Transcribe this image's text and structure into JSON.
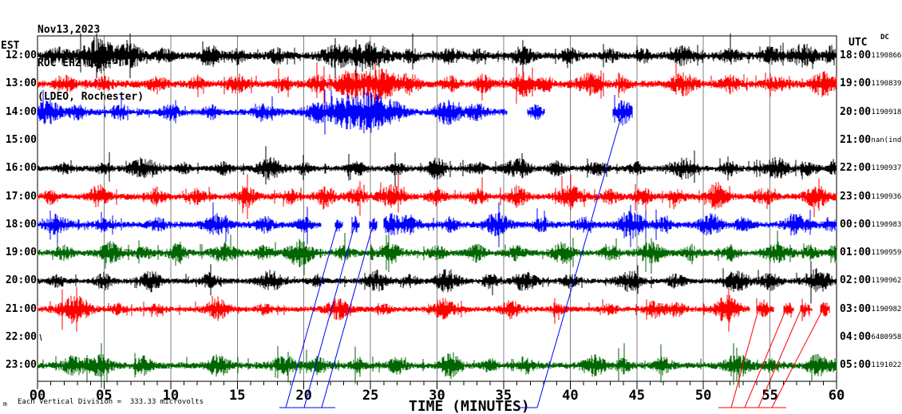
{
  "header": {
    "date": "Nov13,2023",
    "station": "ROC EHZ LD --",
    "location": "(LDEO, Rochester)"
  },
  "left_axis": {
    "label": "EST"
  },
  "right_axis": {
    "label": "UTC",
    "dc_label": "DC"
  },
  "footer": {
    "marker": "m",
    "scale_text": "Each Vertical Division =  333.33 microvolts"
  },
  "colors": {
    "black": "#000000",
    "red": "#ff0000",
    "blue": "#0000ff",
    "green": "#006600",
    "grid": "#808080"
  },
  "chart_data": {
    "type": "line",
    "subtype": "helicorder-seismogram",
    "x_axis": {
      "title": "TIME (MINUTES)",
      "range_minutes": [
        0,
        60
      ],
      "tick_labels": [
        "00",
        "05",
        "10",
        "15",
        "20",
        "25",
        "30",
        "35",
        "40",
        "45",
        "50",
        "55",
        "60"
      ],
      "minor_tick_minutes": 1,
      "major_tick_minutes": 5,
      "grid": "vertical-gray-every-5-min"
    },
    "rows": [
      {
        "est": "12:00",
        "utc": "18:00",
        "dc": "-1190866",
        "color": "black",
        "base_amp": 4.5,
        "segments": [
          [
            0,
            60
          ]
        ],
        "bursts": [
          [
            1.5,
            8,
            0.8
          ],
          [
            4.6,
            20,
            1.3
          ],
          [
            7,
            12,
            0.9
          ],
          [
            9.5,
            7,
            0.6
          ],
          [
            13,
            10,
            0.7
          ],
          [
            15,
            8,
            0.5
          ],
          [
            18,
            7,
            0.6
          ],
          [
            22.5,
            12,
            1.1
          ],
          [
            25,
            14,
            1.3
          ],
          [
            28,
            7,
            0.6
          ],
          [
            31,
            7,
            0.7
          ],
          [
            33,
            6,
            0.5
          ],
          [
            36.5,
            11,
            0.7
          ],
          [
            40,
            7,
            0.6
          ],
          [
            43,
            6,
            0.5
          ],
          [
            45.5,
            7,
            0.5
          ],
          [
            48.5,
            9,
            0.9
          ],
          [
            52,
            7,
            0.7
          ],
          [
            55,
            8,
            0.7
          ],
          [
            57.5,
            12,
            0.9
          ],
          [
            59.6,
            10,
            0.4
          ]
        ]
      },
      {
        "est": "13:00",
        "utc": "19:00",
        "dc": "-1190839",
        "color": "red",
        "base_amp": 4.5,
        "segments": [
          [
            0,
            60
          ]
        ],
        "bursts": [
          [
            2,
            9,
            0.7
          ],
          [
            5,
            7,
            0.6
          ],
          [
            9,
            9,
            0.6
          ],
          [
            12,
            7,
            0.5
          ],
          [
            15,
            10,
            0.7
          ],
          [
            18.5,
            7,
            0.5
          ],
          [
            21,
            9,
            0.6
          ],
          [
            23.5,
            14,
            1.1
          ],
          [
            25.8,
            16,
            1.3
          ],
          [
            28,
            9,
            0.7
          ],
          [
            31,
            7,
            0.6
          ],
          [
            33.5,
            8,
            0.6
          ],
          [
            36.6,
            13,
            0.7
          ],
          [
            38.2,
            7,
            0.5
          ],
          [
            41.5,
            11,
            0.9
          ],
          [
            44,
            7,
            0.5
          ],
          [
            48.5,
            11,
            0.9
          ],
          [
            52,
            9,
            0.6
          ],
          [
            55.5,
            7,
            0.7
          ],
          [
            59,
            12,
            0.9
          ]
        ]
      },
      {
        "est": "14:00",
        "utc": "20:00",
        "dc": "-1190918",
        "color": "blue",
        "base_amp": 4,
        "segments": [
          [
            0,
            35.3
          ],
          [
            36.8,
            38.1
          ],
          [
            43.2,
            44.7
          ]
        ],
        "bursts": [
          [
            0.8,
            13,
            0.9
          ],
          [
            3,
            7,
            0.6
          ],
          [
            6,
            6,
            0.5
          ],
          [
            10,
            9,
            0.6
          ],
          [
            13,
            7,
            0.5
          ],
          [
            17,
            8,
            0.7
          ],
          [
            21,
            11,
            0.9
          ],
          [
            23.2,
            18,
            1.3
          ],
          [
            25.2,
            20,
            1.1
          ],
          [
            27,
            9,
            0.7
          ],
          [
            30.8,
            13,
            0.9
          ],
          [
            33,
            9,
            0.7
          ],
          [
            37.4,
            8,
            0.4
          ],
          [
            44,
            14,
            0.6
          ]
        ]
      },
      {
        "est": "15:00",
        "utc": "21:00",
        "dc": "-nan(ind",
        "color": "green",
        "base_amp": 0,
        "segments": [],
        "bursts": []
      },
      {
        "est": "16:00",
        "utc": "22:00",
        "dc": "-1190937",
        "color": "black",
        "base_amp": 3.5,
        "segments": [
          [
            0,
            60
          ]
        ],
        "bursts": [
          [
            2,
            5,
            0.5
          ],
          [
            5,
            6,
            0.6
          ],
          [
            8,
            11,
            1.1
          ],
          [
            11,
            5,
            0.5
          ],
          [
            14,
            6,
            0.6
          ],
          [
            17.5,
            11,
            0.9
          ],
          [
            20,
            6,
            0.5
          ],
          [
            24,
            7,
            0.7
          ],
          [
            27,
            6,
            0.6
          ],
          [
            30,
            11,
            0.7
          ],
          [
            33,
            7,
            0.6
          ],
          [
            36,
            11,
            0.9
          ],
          [
            39,
            7,
            0.6
          ],
          [
            42,
            7,
            0.7
          ],
          [
            45,
            6,
            0.5
          ],
          [
            48.5,
            11,
            0.9
          ],
          [
            52,
            7,
            0.6
          ],
          [
            55.5,
            11,
            0.9
          ],
          [
            58,
            7,
            0.6
          ],
          [
            59.8,
            9,
            0.3
          ]
        ]
      },
      {
        "est": "17:00",
        "utc": "23:00",
        "dc": "-1190936",
        "color": "red",
        "base_amp": 4,
        "segments": [
          [
            0,
            60
          ]
        ],
        "bursts": [
          [
            1,
            7,
            0.5
          ],
          [
            4.6,
            12,
            0.7
          ],
          [
            9,
            9,
            0.6
          ],
          [
            12,
            7,
            0.6
          ],
          [
            15.6,
            12,
            0.7
          ],
          [
            19,
            7,
            0.6
          ],
          [
            21.6,
            11,
            0.7
          ],
          [
            24,
            9,
            0.7
          ],
          [
            26.6,
            12,
            0.9
          ],
          [
            30,
            9,
            0.6
          ],
          [
            33,
            7,
            0.6
          ],
          [
            36,
            11,
            0.7
          ],
          [
            40,
            11,
            0.9
          ],
          [
            43,
            7,
            0.6
          ],
          [
            45.5,
            9,
            0.6
          ],
          [
            48,
            7,
            0.6
          ],
          [
            51,
            15,
            0.7
          ],
          [
            54.5,
            9,
            0.7
          ],
          [
            58.5,
            11,
            0.9
          ]
        ]
      },
      {
        "est": "18:00",
        "utc": "00:00",
        "dc": "-1190983",
        "color": "blue",
        "base_amp": 4,
        "segments": [
          [
            0,
            21.3
          ],
          [
            22.3,
            22.9
          ],
          [
            23.6,
            24.2
          ],
          [
            24.9,
            25.5
          ],
          [
            26,
            60
          ]
        ],
        "bursts": [
          [
            1.5,
            11,
            0.8
          ],
          [
            5,
            6,
            0.6
          ],
          [
            9,
            6,
            0.6
          ],
          [
            13.5,
            11,
            0.9
          ],
          [
            17,
            9,
            0.6
          ],
          [
            20,
            7,
            0.5
          ],
          [
            22.6,
            8,
            0.2
          ],
          [
            23.9,
            8,
            0.2
          ],
          [
            25.2,
            8,
            0.2
          ],
          [
            26.6,
            11,
            0.7
          ],
          [
            28,
            9,
            0.7
          ],
          [
            31,
            7,
            0.6
          ],
          [
            34.5,
            13,
            0.9
          ],
          [
            38,
            7,
            0.6
          ],
          [
            41,
            7,
            0.6
          ],
          [
            44.6,
            15,
            0.9
          ],
          [
            47,
            7,
            0.6
          ],
          [
            50.5,
            11,
            0.9
          ],
          [
            53,
            7,
            0.6
          ],
          [
            57,
            11,
            0.9
          ],
          [
            59.5,
            7,
            0.5
          ]
        ]
      },
      {
        "est": "19:00",
        "utc": "01:00",
        "dc": "-1190959",
        "color": "green",
        "base_amp": 4,
        "segments": [
          [
            0,
            60
          ]
        ],
        "bursts": [
          [
            2,
            7,
            0.6
          ],
          [
            5.5,
            11,
            0.8
          ],
          [
            8,
            7,
            0.6
          ],
          [
            10.5,
            9,
            0.6
          ],
          [
            14,
            11,
            0.8
          ],
          [
            17,
            7,
            0.6
          ],
          [
            19.7,
            14,
            0.9
          ],
          [
            23,
            7,
            0.6
          ],
          [
            26.5,
            11,
            0.8
          ],
          [
            30,
            7,
            0.6
          ],
          [
            33,
            9,
            0.6
          ],
          [
            36,
            7,
            0.6
          ],
          [
            39.5,
            11,
            0.8
          ],
          [
            43,
            7,
            0.6
          ],
          [
            46,
            11,
            0.9
          ],
          [
            49,
            7,
            0.6
          ],
          [
            52,
            7,
            0.6
          ],
          [
            55.5,
            11,
            0.9
          ],
          [
            58,
            7,
            0.6
          ],
          [
            59.9,
            10,
            0.3
          ]
        ]
      },
      {
        "est": "20:00",
        "utc": "02:00",
        "dc": "-1190962",
        "color": "black",
        "base_amp": 3.5,
        "segments": [
          [
            0,
            60
          ]
        ],
        "bursts": [
          [
            1.5,
            6,
            0.5
          ],
          [
            5,
            9,
            0.6
          ],
          [
            8.5,
            11,
            0.8
          ],
          [
            13,
            9,
            0.6
          ],
          [
            17.5,
            11,
            0.8
          ],
          [
            21,
            6,
            0.5
          ],
          [
            25.5,
            11,
            0.8
          ],
          [
            28,
            6,
            0.5
          ],
          [
            30.8,
            13,
            0.8
          ],
          [
            34,
            7,
            0.6
          ],
          [
            36.6,
            11,
            0.8
          ],
          [
            40,
            7,
            0.6
          ],
          [
            44.5,
            11,
            0.9
          ],
          [
            48,
            7,
            0.6
          ],
          [
            52.5,
            11,
            0.9
          ],
          [
            55,
            9,
            0.7
          ],
          [
            58.6,
            13,
            0.9
          ]
        ]
      },
      {
        "est": "21:00",
        "utc": "03:00",
        "dc": "-1190982",
        "color": "red",
        "base_amp": 3.5,
        "segments": [
          [
            0,
            53.5
          ],
          [
            54.0,
            55.3
          ],
          [
            56.0,
            56.8
          ],
          [
            57.3,
            58.2
          ],
          [
            58.8,
            59.5
          ]
        ],
        "bursts": [
          [
            2.8,
            16,
            1.1
          ],
          [
            6,
            5,
            0.5
          ],
          [
            9,
            5,
            0.5
          ],
          [
            13.5,
            11,
            0.8
          ],
          [
            17,
            5,
            0.5
          ],
          [
            22.5,
            11,
            0.8
          ],
          [
            26,
            5,
            0.5
          ],
          [
            30.5,
            11,
            0.8
          ],
          [
            35.5,
            9,
            0.7
          ],
          [
            39,
            5,
            0.5
          ],
          [
            43,
            5,
            0.5
          ],
          [
            46.5,
            9,
            0.8
          ],
          [
            48,
            7,
            0.6
          ],
          [
            51.8,
            15,
            0.9
          ],
          [
            54.5,
            9,
            0.4
          ],
          [
            56.3,
            8,
            0.3
          ],
          [
            57.6,
            7,
            0.3
          ],
          [
            59.1,
            7,
            0.3
          ]
        ]
      },
      {
        "est": "22:00",
        "utc": "04:00",
        "dc": "-6480958",
        "color": "blue",
        "base_amp": 0,
        "segments": [],
        "bursts": []
      },
      {
        "est": "23:00",
        "utc": "05:00",
        "dc": "-1191022",
        "color": "green",
        "base_amp": 4,
        "segments": [
          [
            0,
            60
          ]
        ],
        "bursts": [
          [
            2.8,
            9,
            1
          ],
          [
            4.8,
            11,
            0.8
          ],
          [
            8,
            9,
            0.6
          ],
          [
            13.6,
            11,
            0.8
          ],
          [
            18.6,
            9,
            1
          ],
          [
            21,
            9,
            0.7
          ],
          [
            24,
            6,
            0.5
          ],
          [
            27,
            9,
            0.6
          ],
          [
            31,
            14,
            0.7
          ],
          [
            34,
            6,
            0.5
          ],
          [
            36.6,
            9,
            0.6
          ],
          [
            41.8,
            11,
            0.9
          ],
          [
            44,
            7,
            0.5
          ],
          [
            47,
            9,
            0.6
          ],
          [
            52.6,
            13,
            0.9
          ],
          [
            55,
            7,
            0.5
          ],
          [
            58.6,
            11,
            0.8
          ],
          [
            59.9,
            7,
            0.3
          ]
        ]
      }
    ],
    "overlays": {
      "blue_lines": [
        [
          350,
          511,
          420,
          511
        ],
        [
          358,
          511,
          424,
          277
        ],
        [
          381,
          511,
          446,
          276
        ],
        [
          403,
          511,
          469,
          276
        ],
        [
          649,
          511,
          673,
          511
        ],
        [
          673,
          511,
          782,
          133
        ]
      ],
      "red_lines": [
        [
          900,
          511,
          985,
          511
        ],
        [
          916,
          511,
          951,
          385
        ],
        [
          933,
          511,
          985,
          387
        ],
        [
          950,
          511,
          1006,
          382
        ],
        [
          967,
          511,
          1035,
          380
        ]
      ],
      "black_marks": [
        [
          50,
          419,
          52,
          427
        ]
      ]
    }
  }
}
